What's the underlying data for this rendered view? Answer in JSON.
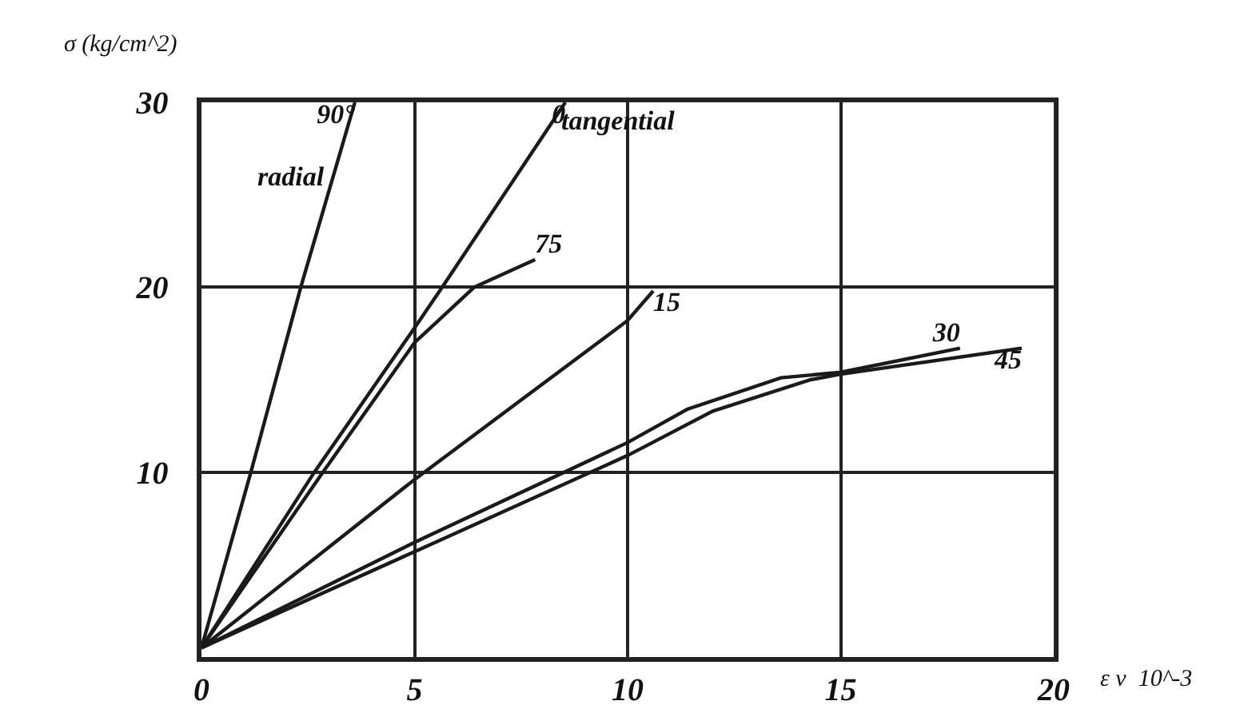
{
  "chart_data": {
    "type": "line",
    "xlabel": "ε v  10^-3",
    "ylabel": "σ (kg/cm^2)",
    "xlim": [
      0,
      20
    ],
    "ylim": [
      0,
      30
    ],
    "xticks": [
      0,
      5,
      10,
      15,
      20
    ],
    "yticks": [
      {
        "value": 0,
        "label": null
      },
      10,
      20,
      30
    ],
    "grid": true,
    "legend": false,
    "marker": "none",
    "line_style": "solid",
    "series": [
      {
        "name": "90°",
        "color": "#1a1a1a",
        "x": [
          0,
          1.16,
          2.33,
          3.6
        ],
        "values": [
          0.5,
          10,
          20,
          30
        ]
      },
      {
        "name": "0",
        "color": "#1a1a1a",
        "x": [
          0,
          2.65,
          5,
          5.65,
          8.54
        ],
        "values": [
          0.5,
          10,
          17.8,
          20,
          30
        ]
      },
      {
        "name": "75",
        "color": "#1a1a1a",
        "x": [
          0,
          2.85,
          5,
          6.4,
          7.83
        ],
        "values": [
          0.5,
          10,
          17,
          20,
          21.5
        ]
      },
      {
        "name": "15",
        "color": "#1a1a1a",
        "x": [
          0,
          5,
          10,
          10.6
        ],
        "values": [
          0.5,
          9.6,
          18.2,
          19.8
        ]
      },
      {
        "name": "30",
        "color": "#1a1a1a",
        "x": [
          0,
          5,
          10,
          11.4,
          13.6,
          15,
          17.8
        ],
        "values": [
          0.5,
          6.2,
          11.6,
          13.4,
          15.1,
          15.4,
          16.7
        ]
      },
      {
        "name": "45",
        "color": "#1a1a1a",
        "x": [
          0,
          5,
          10,
          12,
          14.3,
          15,
          19.25
        ],
        "values": [
          0.5,
          5.7,
          10.9,
          13.3,
          15,
          15.3,
          16.7
        ]
      }
    ],
    "annotations": [
      {
        "text": "radial",
        "x": 3.1,
        "y": 26
      },
      {
        "text": "tangential",
        "x": 8.2,
        "y": 29
      }
    ]
  }
}
